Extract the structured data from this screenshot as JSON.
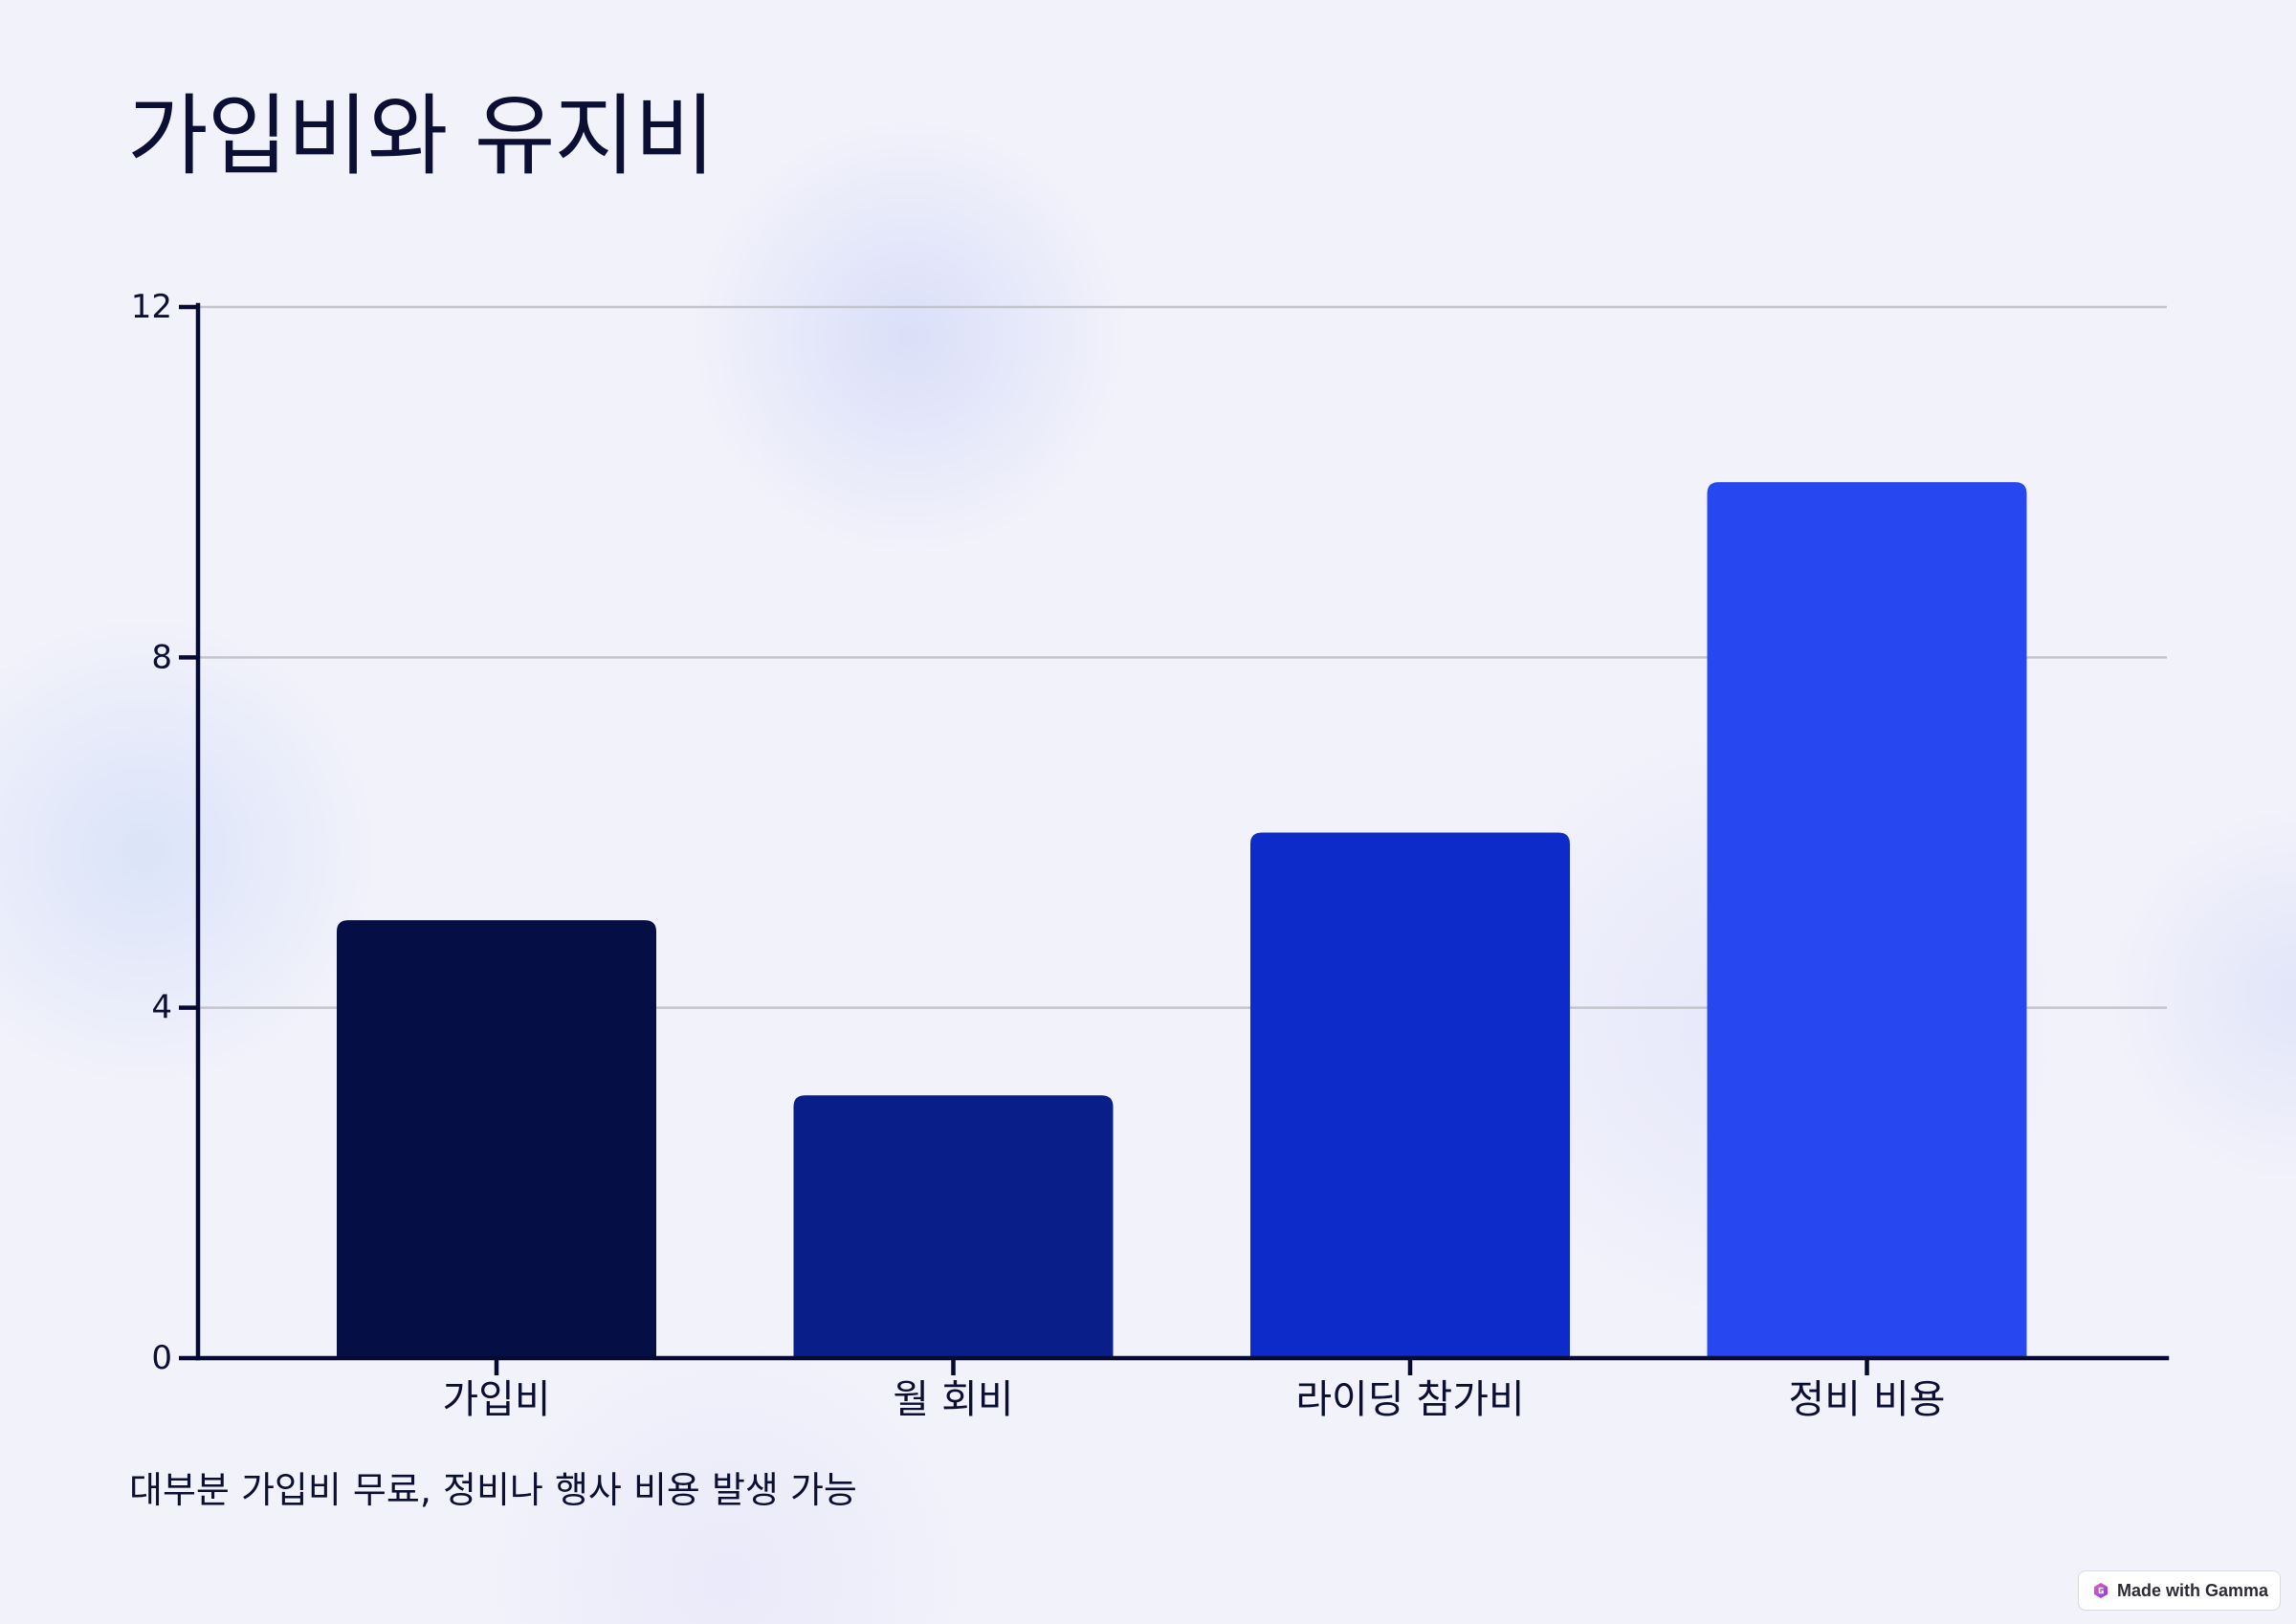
{
  "slide": {
    "title": "가입비와 유지비",
    "caption": "대부분 가입비 무료, 정비나 행사 비용 발생 가능"
  },
  "badge": {
    "label": "Made with Gamma",
    "icon": "gamma-logo-icon"
  },
  "colors": {
    "background": "#F2F2FB",
    "text": "#0A0F33",
    "axis": "#040A33",
    "grid": "#C4C4CC"
  },
  "chart_data": {
    "type": "bar",
    "categories": [
      "가입비",
      "월 회비",
      "라이딩 참가비",
      "정비 비용"
    ],
    "values": [
      5,
      3,
      6,
      10
    ],
    "bar_colors": [
      "#050F45",
      "#0A1E8A",
      "#0C2BC8",
      "#2747F0"
    ],
    "xlabel": "",
    "ylabel": "",
    "ylim": [
      0,
      12
    ],
    "yticks": [
      0,
      4,
      8,
      12
    ],
    "grid": true,
    "legend": false
  }
}
